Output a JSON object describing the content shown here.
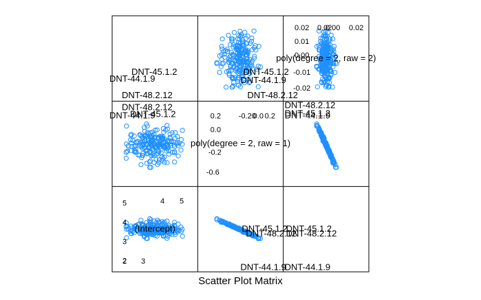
{
  "chart_data": {
    "type": "scatter",
    "xlabel": "Scatter Plot Matrix",
    "variables": [
      {
        "label": "(Intercept)",
        "ticks_low": [
          2,
          3
        ],
        "ticks_high": [
          4,
          5
        ],
        "range": [
          1.6,
          5.6
        ]
      },
      {
        "label": "poly(degree = 2, raw = 1)",
        "ticks_low": [
          -0.6,
          -0.2
        ],
        "ticks_high": [
          -0.2,
          0.2
        ],
        "range": [
          -0.75,
          0.35
        ]
      },
      {
        "label": "poly(degree = 2, raw = 2)",
        "ticks_low": [
          -0.02,
          0.0
        ],
        "ticks_high": [
          0.0,
          0.02
        ],
        "range": [
          -0.03,
          0.03
        ]
      }
    ],
    "tick_labels_shown": {
      "var1_left": [
        "5",
        "4",
        "3",
        "2"
      ],
      "var1_bottom": [
        "2",
        "3",
        "4",
        "5"
      ],
      "var2_left": [
        "0.2",
        "0.0",
        "-0.2",
        "-0.6"
      ],
      "var2_top": [
        "-0.20",
        "0.0",
        "0.2"
      ],
      "var3_right": [
        "0.02",
        "0.01",
        "0.00",
        "-0.01",
        "-0.02"
      ],
      "var3_top": [
        "0.02",
        "0.00",
        "0.02"
      ]
    },
    "outlier_labels": [
      {
        "panel": "r0c0",
        "text": "DNT-45.1.2"
      },
      {
        "panel": "r0c0",
        "text": "DNT-44.1.9"
      },
      {
        "panel": "r0c0",
        "text": "DNT-48.2.12"
      },
      {
        "panel": "r0c1",
        "text": "DNT-45.1.2"
      },
      {
        "panel": "r0c1",
        "text": "DNT-44.1.9"
      },
      {
        "panel": "r0c1",
        "text": "DNT-48.2.12"
      },
      {
        "panel": "r1c0",
        "text": "DNT-48.2.12"
      },
      {
        "panel": "r1c0",
        "text": "DNT-45.1.2"
      },
      {
        "panel": "r1c0",
        "text": "DNT-44.1.9"
      },
      {
        "panel": "r1c2",
        "text": "DNT-48.2.12"
      },
      {
        "panel": "r1c2",
        "text": "DNT-45.1.2"
      },
      {
        "panel": "r1c2",
        "text": "DNT-44.1.9"
      },
      {
        "panel": "r2c1",
        "text": "DNT-45.1.2"
      },
      {
        "panel": "r2c1",
        "text": "DNT-48.2.12"
      },
      {
        "panel": "r2c1",
        "text": "DNT-44.1.9"
      },
      {
        "panel": "r2c2",
        "text": "DNT-45.1.2"
      },
      {
        "panel": "r2c2",
        "text": "DNT-48.2.12"
      },
      {
        "panel": "r2c2",
        "text": "DNT-44.1.9"
      }
    ],
    "point_color": "#1e90ff",
    "n_points_per_panel": 220,
    "grid": false,
    "legend": "none"
  }
}
